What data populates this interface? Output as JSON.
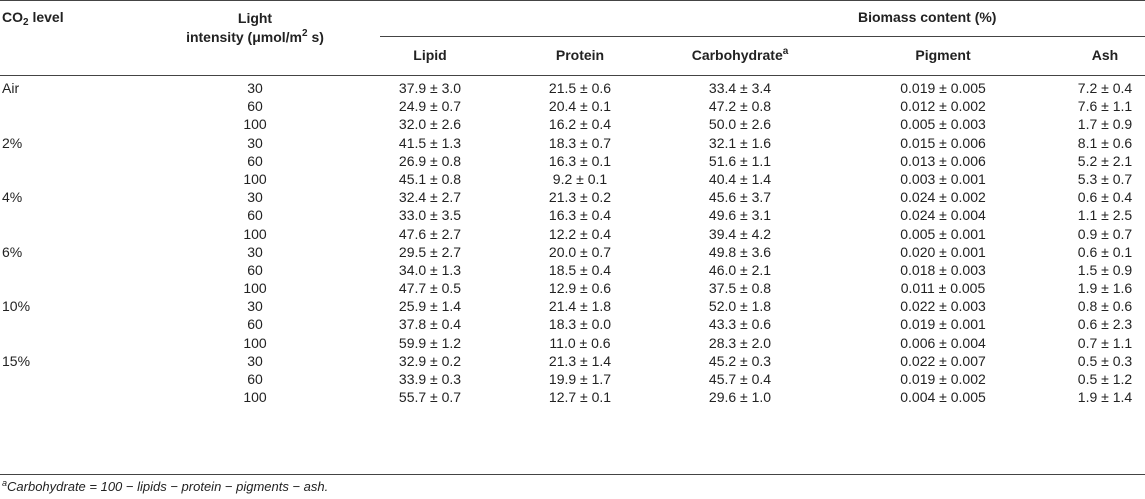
{
  "headers": {
    "co2_level": "CO",
    "co2_sub": "2",
    "co2_rest": " level",
    "light_line1": "Light",
    "light_line2": "intensity (μmol/m",
    "light_sup": "2",
    "light_rest": " s)",
    "biomass": "Biomass content (%)",
    "lipid": "Lipid",
    "protein": "Protein",
    "carbohydrate": "Carbohydrate",
    "carbohydrate_sup": "a",
    "pigment": "Pigment",
    "ash": "Ash"
  },
  "rows": [
    {
      "co2": "Air",
      "light": "30",
      "lipid": "37.9 ± 3.0",
      "protein": "21.5 ± 0.6",
      "carb": "33.4 ± 3.4",
      "pigment": "0.019 ± 0.005",
      "ash": "7.2 ± 0.4"
    },
    {
      "co2": "",
      "light": "60",
      "lipid": "24.9 ± 0.7",
      "protein": "20.4 ± 0.1",
      "carb": "47.2 ± 0.8",
      "pigment": "0.012 ± 0.002",
      "ash": "7.6 ± 1.1"
    },
    {
      "co2": "",
      "light": "100",
      "lipid": "32.0 ± 2.6",
      "protein": "16.2 ± 0.4",
      "carb": "50.0 ± 2.6",
      "pigment": "0.005 ± 0.003",
      "ash": "1.7 ± 0.9"
    },
    {
      "co2": "2%",
      "light": "30",
      "lipid": "41.5 ± 1.3",
      "protein": "18.3 ± 0.7",
      "carb": "32.1 ± 1.6",
      "pigment": "0.015 ± 0.006",
      "ash": "8.1 ± 0.6"
    },
    {
      "co2": "",
      "light": "60",
      "lipid": "26.9 ± 0.8",
      "protein": "16.3 ± 0.1",
      "carb": "51.6 ± 1.1",
      "pigment": "0.013 ± 0.006",
      "ash": "5.2 ± 2.1"
    },
    {
      "co2": "",
      "light": "100",
      "lipid": "45.1 ± 0.8",
      "protein": "9.2 ± 0.1",
      "carb": "40.4 ± 1.4",
      "pigment": "0.003 ± 0.001",
      "ash": "5.3 ± 0.7"
    },
    {
      "co2": "4%",
      "light": "30",
      "lipid": "32.4 ± 2.7",
      "protein": "21.3 ± 0.2",
      "carb": "45.6 ± 3.7",
      "pigment": "0.024 ± 0.002",
      "ash": "0.6 ± 0.4"
    },
    {
      "co2": "",
      "light": "60",
      "lipid": "33.0 ± 3.5",
      "protein": "16.3 ± 0.4",
      "carb": "49.6 ± 3.1",
      "pigment": "0.024 ± 0.004",
      "ash": "1.1 ± 2.5"
    },
    {
      "co2": "",
      "light": "100",
      "lipid": "47.6 ± 2.7",
      "protein": "12.2 ± 0.4",
      "carb": "39.4 ± 4.2",
      "pigment": "0.005 ± 0.001",
      "ash": "0.9 ± 0.7"
    },
    {
      "co2": "6%",
      "light": "30",
      "lipid": "29.5 ± 2.7",
      "protein": "20.0 ± 0.7",
      "carb": "49.8 ± 3.6",
      "pigment": "0.020 ± 0.001",
      "ash": "0.6 ± 0.1"
    },
    {
      "co2": "",
      "light": "60",
      "lipid": "34.0 ± 1.3",
      "protein": "18.5 ± 0.4",
      "carb": "46.0 ± 2.1",
      "pigment": "0.018 ± 0.003",
      "ash": "1.5 ± 0.9"
    },
    {
      "co2": "",
      "light": "100",
      "lipid": "47.7 ± 0.5",
      "protein": "12.9 ± 0.6",
      "carb": "37.5 ± 0.8",
      "pigment": "0.011 ± 0.005",
      "ash": "1.9 ± 1.6"
    },
    {
      "co2": "10%",
      "light": "30",
      "lipid": "25.9 ± 1.4",
      "protein": "21.4 ± 1.8",
      "carb": "52.0 ± 1.8",
      "pigment": "0.022 ± 0.003",
      "ash": "0.8 ± 0.6"
    },
    {
      "co2": "",
      "light": "60",
      "lipid": "37.8 ± 0.4",
      "protein": "18.3 ± 0.0",
      "carb": "43.3 ± 0.6",
      "pigment": "0.019 ± 0.001",
      "ash": "0.6 ± 2.3"
    },
    {
      "co2": "",
      "light": "100",
      "lipid": "59.9 ± 1.2",
      "protein": "11.0 ± 0.6",
      "carb": "28.3 ± 2.0",
      "pigment": "0.006 ± 0.004",
      "ash": "0.7 ± 1.1"
    },
    {
      "co2": "15%",
      "light": "30",
      "lipid": "32.9 ± 0.2",
      "protein": "21.3 ± 1.4",
      "carb": "45.2 ± 0.3",
      "pigment": "0.022 ± 0.007",
      "ash": "0.5 ± 0.3"
    },
    {
      "co2": "",
      "light": "60",
      "lipid": "33.9 ± 0.3",
      "protein": "19.9 ± 1.7",
      "carb": "45.7 ± 0.4",
      "pigment": "0.019 ± 0.002",
      "ash": "0.5 ± 1.2"
    },
    {
      "co2": "",
      "light": "100",
      "lipid": "55.7 ± 0.7",
      "protein": "12.7 ± 0.1",
      "carb": "29.6 ± 1.0",
      "pigment": "0.004 ± 0.005",
      "ash": "1.9 ± 1.4"
    }
  ],
  "footnote": {
    "marker": "a",
    "text": "Carbohydrate = 100 − lipids − protein − pigments − ash."
  }
}
